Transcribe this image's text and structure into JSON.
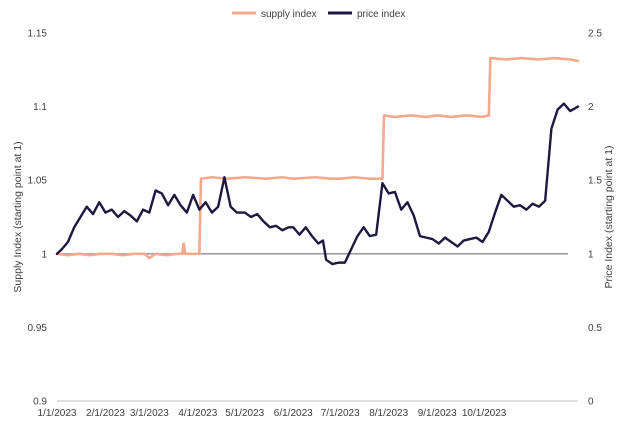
{
  "chart_data": {
    "type": "line",
    "title": "",
    "legend_position": "top-center",
    "grid": false,
    "x_axis": {
      "ticks": [
        "1/1/2023",
        "2/1/2023",
        "3/1/2023",
        "4/1/2023",
        "5/1/2023",
        "6/1/2023",
        "7/1/2023",
        "8/1/2023",
        "9/1/2023",
        "10/1/2023"
      ],
      "range": [
        "2023-01-01",
        "2023-11-30"
      ]
    },
    "y_left": {
      "label": "Supply Index (starting point at 1)",
      "range": [
        0.9,
        1.15
      ],
      "ticks": [
        "0.9",
        "0.95",
        "1",
        "1.05",
        "1.1",
        "1.15"
      ]
    },
    "y_right": {
      "label": "Price Index (starting point at 1)",
      "range": [
        0,
        2.5
      ],
      "ticks": [
        "0",
        "0.5",
        "1",
        "1.5",
        "2",
        "2.5"
      ]
    },
    "reference_line": {
      "axis": "left",
      "value": 1,
      "color": "#8e8a9c"
    },
    "series": [
      {
        "name": "supply index",
        "axis": "left",
        "color": "#f4a98e",
        "points": [
          [
            "2023-01-01",
            1.0
          ],
          [
            "2023-01-08",
            0.999
          ],
          [
            "2023-01-15",
            1.0
          ],
          [
            "2023-01-22",
            0.999
          ],
          [
            "2023-01-29",
            1.0
          ],
          [
            "2023-02-05",
            1.0
          ],
          [
            "2023-02-12",
            0.999
          ],
          [
            "2023-02-19",
            1.0
          ],
          [
            "2023-02-26",
            1.0
          ],
          [
            "2023-03-01",
            0.997
          ],
          [
            "2023-03-05",
            1.0
          ],
          [
            "2023-03-12",
            0.999
          ],
          [
            "2023-03-19",
            1.0
          ],
          [
            "2023-03-22",
            1.0
          ],
          [
            "2023-03-23",
            1.007
          ],
          [
            "2023-03-24",
            1.0
          ],
          [
            "2023-03-31",
            1.0
          ],
          [
            "2023-04-02",
            1.0
          ],
          [
            "2023-04-03",
            1.051
          ],
          [
            "2023-04-10",
            1.052
          ],
          [
            "2023-04-20",
            1.051
          ],
          [
            "2023-05-01",
            1.052
          ],
          [
            "2023-05-15",
            1.051
          ],
          [
            "2023-05-25",
            1.052
          ],
          [
            "2023-06-01",
            1.051
          ],
          [
            "2023-06-15",
            1.052
          ],
          [
            "2023-06-25",
            1.051
          ],
          [
            "2023-07-01",
            1.051
          ],
          [
            "2023-07-10",
            1.052
          ],
          [
            "2023-07-20",
            1.051
          ],
          [
            "2023-07-28",
            1.051
          ],
          [
            "2023-07-29",
            1.094
          ],
          [
            "2023-08-05",
            1.093
          ],
          [
            "2023-08-15",
            1.094
          ],
          [
            "2023-08-25",
            1.093
          ],
          [
            "2023-09-01",
            1.094
          ],
          [
            "2023-09-10",
            1.093
          ],
          [
            "2023-09-20",
            1.094
          ],
          [
            "2023-09-30",
            1.093
          ],
          [
            "2023-10-04",
            1.094
          ],
          [
            "2023-10-05",
            1.133
          ],
          [
            "2023-10-15",
            1.132
          ],
          [
            "2023-10-25",
            1.133
          ],
          [
            "2023-11-05",
            1.132
          ],
          [
            "2023-11-15",
            1.133
          ],
          [
            "2023-11-25",
            1.132
          ],
          [
            "2023-11-30",
            1.131
          ]
        ]
      },
      {
        "name": "price index",
        "axis": "right",
        "color": "#1c1940",
        "points": [
          [
            "2023-01-01",
            1.0
          ],
          [
            "2023-01-04",
            1.03
          ],
          [
            "2023-01-08",
            1.08
          ],
          [
            "2023-01-12",
            1.18
          ],
          [
            "2023-01-16",
            1.25
          ],
          [
            "2023-01-20",
            1.32
          ],
          [
            "2023-01-24",
            1.27
          ],
          [
            "2023-01-28",
            1.35
          ],
          [
            "2023-02-01",
            1.28
          ],
          [
            "2023-02-05",
            1.3
          ],
          [
            "2023-02-09",
            1.25
          ],
          [
            "2023-02-13",
            1.29
          ],
          [
            "2023-02-17",
            1.26
          ],
          [
            "2023-02-21",
            1.22
          ],
          [
            "2023-02-25",
            1.3
          ],
          [
            "2023-03-01",
            1.28
          ],
          [
            "2023-03-05",
            1.43
          ],
          [
            "2023-03-09",
            1.41
          ],
          [
            "2023-03-13",
            1.33
          ],
          [
            "2023-03-17",
            1.4
          ],
          [
            "2023-03-21",
            1.33
          ],
          [
            "2023-03-25",
            1.28
          ],
          [
            "2023-03-29",
            1.4
          ],
          [
            "2023-04-02",
            1.3
          ],
          [
            "2023-04-06",
            1.35
          ],
          [
            "2023-04-10",
            1.28
          ],
          [
            "2023-04-14",
            1.32
          ],
          [
            "2023-04-18",
            1.52
          ],
          [
            "2023-04-22",
            1.32
          ],
          [
            "2023-04-26",
            1.28
          ],
          [
            "2023-05-01",
            1.28
          ],
          [
            "2023-05-05",
            1.25
          ],
          [
            "2023-05-09",
            1.27
          ],
          [
            "2023-05-13",
            1.22
          ],
          [
            "2023-05-17",
            1.18
          ],
          [
            "2023-05-21",
            1.19
          ],
          [
            "2023-05-25",
            1.16
          ],
          [
            "2023-05-29",
            1.18
          ],
          [
            "2023-06-01",
            1.18
          ],
          [
            "2023-06-05",
            1.13
          ],
          [
            "2023-06-09",
            1.18
          ],
          [
            "2023-06-13",
            1.12
          ],
          [
            "2023-06-17",
            1.07
          ],
          [
            "2023-06-20",
            1.09
          ],
          [
            "2023-06-22",
            0.96
          ],
          [
            "2023-06-26",
            0.93
          ],
          [
            "2023-06-30",
            0.94
          ],
          [
            "2023-07-04",
            0.94
          ],
          [
            "2023-07-08",
            1.03
          ],
          [
            "2023-07-12",
            1.12
          ],
          [
            "2023-07-16",
            1.18
          ],
          [
            "2023-07-20",
            1.12
          ],
          [
            "2023-07-24",
            1.13
          ],
          [
            "2023-07-28",
            1.48
          ],
          [
            "2023-08-01",
            1.41
          ],
          [
            "2023-08-05",
            1.42
          ],
          [
            "2023-08-09",
            1.3
          ],
          [
            "2023-08-13",
            1.35
          ],
          [
            "2023-08-17",
            1.26
          ],
          [
            "2023-08-21",
            1.12
          ],
          [
            "2023-08-25",
            1.11
          ],
          [
            "2023-08-29",
            1.1
          ],
          [
            "2023-09-02",
            1.07
          ],
          [
            "2023-09-06",
            1.11
          ],
          [
            "2023-09-10",
            1.08
          ],
          [
            "2023-09-14",
            1.05
          ],
          [
            "2023-09-18",
            1.09
          ],
          [
            "2023-09-22",
            1.1
          ],
          [
            "2023-09-26",
            1.11
          ],
          [
            "2023-09-30",
            1.08
          ],
          [
            "2023-10-04",
            1.15
          ],
          [
            "2023-10-08",
            1.28
          ],
          [
            "2023-10-12",
            1.4
          ],
          [
            "2023-10-16",
            1.36
          ],
          [
            "2023-10-20",
            1.32
          ],
          [
            "2023-10-24",
            1.33
          ],
          [
            "2023-10-28",
            1.3
          ],
          [
            "2023-11-01",
            1.34
          ],
          [
            "2023-11-05",
            1.32
          ],
          [
            "2023-11-09",
            1.36
          ],
          [
            "2023-11-13",
            1.85
          ],
          [
            "2023-11-17",
            1.98
          ],
          [
            "2023-11-21",
            2.02
          ],
          [
            "2023-11-25",
            1.97
          ],
          [
            "2023-11-30",
            2.0
          ]
        ]
      }
    ]
  }
}
